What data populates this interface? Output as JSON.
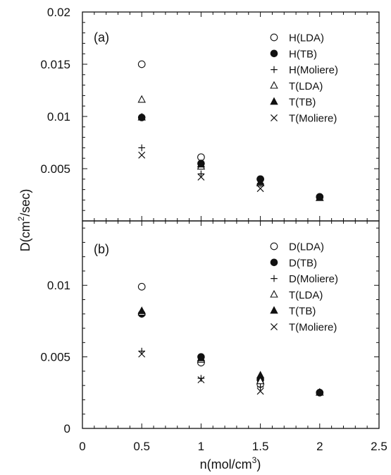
{
  "chart_data": [
    {
      "type": "scatter",
      "panel_label": "(a)",
      "xlim": [
        0,
        2.5
      ],
      "ylim": [
        0,
        0.02
      ],
      "xticks": [
        "0",
        "0.5",
        "1",
        "1.5",
        "2",
        "2.5"
      ],
      "yticks": [
        {
          "value": 0.005,
          "label": "0.005"
        },
        {
          "value": 0.01,
          "label": "0.01"
        },
        {
          "value": 0.015,
          "label": "0.015"
        },
        {
          "value": 0.02,
          "label": "0.02"
        }
      ],
      "legend_position": "top-right",
      "series": [
        {
          "name": "H(LDA)",
          "marker": "open-circle",
          "points": [
            [
              0.5,
              0.015
            ],
            [
              1.0,
              0.0061
            ],
            [
              1.5,
              0.004
            ],
            [
              2.0,
              0.0023
            ]
          ]
        },
        {
          "name": "H(TB)",
          "marker": "filled-circle",
          "points": [
            [
              0.5,
              0.0099
            ],
            [
              1.0,
              0.0055
            ],
            [
              1.5,
              0.004
            ],
            [
              2.0,
              0.0023
            ]
          ]
        },
        {
          "name": "H(Moliere)",
          "marker": "plus",
          "points": [
            [
              0.5,
              0.007
            ],
            [
              1.0,
              0.0045
            ],
            [
              1.5,
              0.0036
            ]
          ]
        },
        {
          "name": "T(LDA)",
          "marker": "open-triangle",
          "points": [
            [
              0.5,
              0.0116
            ],
            [
              1.0,
              0.0052
            ],
            [
              1.5,
              0.0036
            ],
            [
              2.0,
              0.0022
            ]
          ]
        },
        {
          "name": "T(TB)",
          "marker": "filled-triangle",
          "points": [
            [
              0.5,
              0.0099
            ],
            [
              1.0,
              0.0054
            ],
            [
              1.5,
              0.0037
            ],
            [
              2.0,
              0.0022
            ]
          ]
        },
        {
          "name": "T(Moliere)",
          "marker": "x",
          "points": [
            [
              0.5,
              0.0063
            ],
            [
              1.0,
              0.0042
            ],
            [
              1.5,
              0.0031
            ]
          ]
        }
      ]
    },
    {
      "type": "scatter",
      "panel_label": "(b)",
      "xlim": [
        0,
        2.5
      ],
      "ylim": [
        0,
        0.0145
      ],
      "xticks": [
        "0",
        "0.5",
        "1",
        "1.5",
        "2",
        "2.5"
      ],
      "yticks": [
        {
          "value": 0,
          "label": "0"
        },
        {
          "value": 0.005,
          "label": "0.005"
        },
        {
          "value": 0.01,
          "label": "0.01"
        }
      ],
      "legend_position": "top-right",
      "series": [
        {
          "name": "D(LDA)",
          "marker": "open-circle",
          "points": [
            [
              0.5,
              0.0099
            ],
            [
              1.0,
              0.0046
            ],
            [
              1.5,
              0.0031
            ],
            [
              2.0,
              0.0025
            ]
          ]
        },
        {
          "name": "D(TB)",
          "marker": "filled-circle",
          "points": [
            [
              0.5,
              0.008
            ],
            [
              1.0,
              0.005
            ],
            [
              1.5,
              0.0034
            ],
            [
              2.0,
              0.0025
            ]
          ]
        },
        {
          "name": "D(Moliere)",
          "marker": "plus",
          "points": [
            [
              0.5,
              0.0054
            ],
            [
              1.0,
              0.0035
            ],
            [
              1.5,
              0.0029
            ]
          ]
        },
        {
          "name": "T(LDA)",
          "marker": "open-triangle",
          "points": [
            [
              0.5,
              0.0081
            ],
            [
              1.0,
              0.0048
            ],
            [
              1.5,
              0.0033
            ],
            [
              2.0,
              0.0025
            ]
          ]
        },
        {
          "name": "T(TB)",
          "marker": "filled-triangle",
          "points": [
            [
              0.5,
              0.0082
            ],
            [
              1.0,
              0.0049
            ],
            [
              1.5,
              0.0037
            ],
            [
              2.0,
              0.0025
            ]
          ]
        },
        {
          "name": "T(Moliere)",
          "marker": "x",
          "points": [
            [
              0.5,
              0.0052
            ],
            [
              1.0,
              0.0034
            ],
            [
              1.5,
              0.0026
            ]
          ]
        }
      ]
    }
  ],
  "axes": {
    "xlabel_main": "n(mol/cm",
    "xlabel_sup": "3",
    "xlabel_close": ")",
    "ylabel_main": "D(cm",
    "ylabel_sup": "2",
    "ylabel_close": "/sec)"
  }
}
